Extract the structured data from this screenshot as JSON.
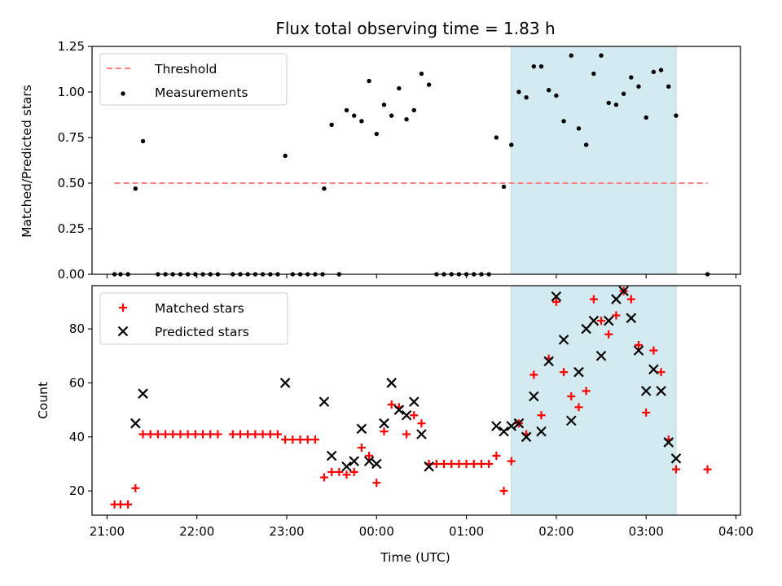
{
  "figure": {
    "title": "Flux total observing time = 1.83 h"
  },
  "chart_data": [
    {
      "type": "scatter",
      "ylabel": "Matched/Predicted stars",
      "ylim": [
        0,
        1.25
      ],
      "yticks": [
        "0.00",
        "0.25",
        "0.50",
        "0.75",
        "1.00",
        "1.25"
      ],
      "xlim": [
        "20:50",
        "04:03"
      ],
      "grid": false,
      "legend": "top-left",
      "highlight_span": {
        "from": "01:30",
        "to": "03:20",
        "color": "#d3eaf0"
      },
      "series": [
        {
          "name": "Threshold",
          "style": "dashed-line",
          "color": "#ff7f7f",
          "x": [
            "21:05",
            "03:41"
          ],
          "y": [
            0.5,
            0.5
          ]
        },
        {
          "name": "Measurements",
          "style": "dot",
          "color": "#000000",
          "points": [
            [
              "21:05",
              0
            ],
            [
              "21:09",
              0
            ],
            [
              "21:14",
              0
            ],
            [
              "21:19",
              0.47
            ],
            [
              "21:24",
              0.73
            ],
            [
              "21:34",
              0
            ],
            [
              "21:39",
              0
            ],
            [
              "21:44",
              0
            ],
            [
              "21:49",
              0
            ],
            [
              "21:54",
              0
            ],
            [
              "21:59",
              0
            ],
            [
              "22:04",
              0
            ],
            [
              "22:09",
              0
            ],
            [
              "22:14",
              0
            ],
            [
              "22:24",
              0
            ],
            [
              "22:29",
              0
            ],
            [
              "22:34",
              0
            ],
            [
              "22:39",
              0
            ],
            [
              "22:44",
              0
            ],
            [
              "22:49",
              0
            ],
            [
              "22:54",
              0
            ],
            [
              "22:59",
              0.65
            ],
            [
              "23:04",
              0
            ],
            [
              "23:09",
              0
            ],
            [
              "23:14",
              0
            ],
            [
              "23:19",
              0
            ],
            [
              "23:24",
              0
            ],
            [
              "23:25",
              0.47
            ],
            [
              "23:30",
              0.82
            ],
            [
              "23:35",
              0
            ],
            [
              "23:40",
              0.9
            ],
            [
              "23:45",
              0.87
            ],
            [
              "23:50",
              0.84
            ],
            [
              "23:55",
              1.06
            ],
            [
              "00:00",
              0.77
            ],
            [
              "00:05",
              0.93
            ],
            [
              "00:10",
              0.87
            ],
            [
              "00:15",
              1.02
            ],
            [
              "00:20",
              0.85
            ],
            [
              "00:25",
              0.9
            ],
            [
              "00:30",
              1.1
            ],
            [
              "00:35",
              1.04
            ],
            [
              "00:40",
              0
            ],
            [
              "00:45",
              0
            ],
            [
              "00:50",
              0
            ],
            [
              "00:55",
              0
            ],
            [
              "01:00",
              0
            ],
            [
              "01:05",
              0
            ],
            [
              "01:10",
              0
            ],
            [
              "01:15",
              0
            ],
            [
              "01:20",
              0.75
            ],
            [
              "01:25",
              0.48
            ],
            [
              "01:30",
              0.71
            ],
            [
              "01:35",
              1.0
            ],
            [
              "01:40",
              0.97
            ],
            [
              "01:45",
              1.14
            ],
            [
              "01:50",
              1.14
            ],
            [
              "01:55",
              1.01
            ],
            [
              "02:00",
              0.98
            ],
            [
              "02:05",
              0.84
            ],
            [
              "02:10",
              1.2
            ],
            [
              "02:15",
              0.8
            ],
            [
              "02:20",
              0.71
            ],
            [
              "02:25",
              1.1
            ],
            [
              "02:30",
              1.2
            ],
            [
              "02:35",
              0.94
            ],
            [
              "02:40",
              0.93
            ],
            [
              "02:45",
              0.99
            ],
            [
              "02:50",
              1.08
            ],
            [
              "02:55",
              1.03
            ],
            [
              "03:00",
              0.86
            ],
            [
              "03:05",
              1.11
            ],
            [
              "03:10",
              1.12
            ],
            [
              "03:15",
              1.03
            ],
            [
              "03:20",
              0.87
            ],
            [
              "03:41",
              0
            ]
          ]
        }
      ]
    },
    {
      "type": "scatter",
      "xlabel": "Time (UTC)",
      "ylabel": "Count",
      "ylim": [
        11,
        96
      ],
      "yticks": [
        "20",
        "40",
        "60",
        "80"
      ],
      "xlim": [
        "20:50",
        "04:03"
      ],
      "xticks": [
        "21:00",
        "22:00",
        "23:00",
        "00:00",
        "01:00",
        "02:00",
        "03:00",
        "04:00"
      ],
      "grid": false,
      "legend": "top-left",
      "highlight_span": {
        "from": "01:30",
        "to": "03:20",
        "color": "#d3eaf0"
      },
      "series": [
        {
          "name": "Matched stars",
          "marker": "plus",
          "color": "#ff0000",
          "points": [
            [
              "21:05",
              15
            ],
            [
              "21:09",
              15
            ],
            [
              "21:14",
              15
            ],
            [
              "21:19",
              21
            ],
            [
              "21:24",
              41
            ],
            [
              "21:29",
              41
            ],
            [
              "21:34",
              41
            ],
            [
              "21:39",
              41
            ],
            [
              "21:44",
              41
            ],
            [
              "21:49",
              41
            ],
            [
              "21:54",
              41
            ],
            [
              "21:59",
              41
            ],
            [
              "22:04",
              41
            ],
            [
              "22:09",
              41
            ],
            [
              "22:14",
              41
            ],
            [
              "22:24",
              41
            ],
            [
              "22:29",
              41
            ],
            [
              "22:34",
              41
            ],
            [
              "22:39",
              41
            ],
            [
              "22:44",
              41
            ],
            [
              "22:49",
              41
            ],
            [
              "22:54",
              41
            ],
            [
              "22:59",
              39
            ],
            [
              "23:04",
              39
            ],
            [
              "23:09",
              39
            ],
            [
              "23:14",
              39
            ],
            [
              "23:19",
              39
            ],
            [
              "23:25",
              25
            ],
            [
              "23:30",
              27
            ],
            [
              "23:35",
              27
            ],
            [
              "23:40",
              26
            ],
            [
              "23:45",
              27
            ],
            [
              "23:50",
              36
            ],
            [
              "23:55",
              33
            ],
            [
              "00:00",
              23
            ],
            [
              "00:05",
              42
            ],
            [
              "00:10",
              52
            ],
            [
              "00:15",
              51
            ],
            [
              "00:20",
              41
            ],
            [
              "00:25",
              48
            ],
            [
              "00:30",
              45
            ],
            [
              "00:35",
              30
            ],
            [
              "00:40",
              30
            ],
            [
              "00:45",
              30
            ],
            [
              "00:50",
              30
            ],
            [
              "00:55",
              30
            ],
            [
              "01:00",
              30
            ],
            [
              "01:05",
              30
            ],
            [
              "01:10",
              30
            ],
            [
              "01:15",
              30
            ],
            [
              "01:20",
              33
            ],
            [
              "01:25",
              20
            ],
            [
              "01:30",
              31
            ],
            [
              "01:35",
              45
            ],
            [
              "01:40",
              41
            ],
            [
              "01:45",
              63
            ],
            [
              "01:50",
              48
            ],
            [
              "01:55",
              69
            ],
            [
              "02:00",
              90
            ],
            [
              "02:05",
              64
            ],
            [
              "02:10",
              55
            ],
            [
              "02:15",
              51
            ],
            [
              "02:20",
              57
            ],
            [
              "02:25",
              91
            ],
            [
              "02:30",
              83
            ],
            [
              "02:35",
              78
            ],
            [
              "02:40",
              85
            ],
            [
              "02:45",
              94
            ],
            [
              "02:50",
              91
            ],
            [
              "02:55",
              74
            ],
            [
              "03:00",
              49
            ],
            [
              "03:05",
              72
            ],
            [
              "03:10",
              64
            ],
            [
              "03:15",
              39
            ],
            [
              "03:20",
              28
            ],
            [
              "03:41",
              28
            ]
          ]
        },
        {
          "name": "Predicted stars",
          "marker": "x",
          "color": "#000000",
          "points": [
            [
              "21:19",
              45
            ],
            [
              "21:24",
              56
            ],
            [
              "22:59",
              60
            ],
            [
              "23:25",
              53
            ],
            [
              "23:30",
              33
            ],
            [
              "23:40",
              29
            ],
            [
              "23:45",
              31
            ],
            [
              "23:50",
              43
            ],
            [
              "23:55",
              31
            ],
            [
              "00:00",
              30
            ],
            [
              "00:05",
              45
            ],
            [
              "00:10",
              60
            ],
            [
              "00:15",
              50
            ],
            [
              "00:20",
              48
            ],
            [
              "00:25",
              53
            ],
            [
              "00:30",
              41
            ],
            [
              "00:35",
              29
            ],
            [
              "01:20",
              44
            ],
            [
              "01:25",
              42
            ],
            [
              "01:30",
              44
            ],
            [
              "01:35",
              45
            ],
            [
              "01:40",
              40
            ],
            [
              "01:45",
              55
            ],
            [
              "01:50",
              42
            ],
            [
              "01:55",
              68
            ],
            [
              "02:00",
              92
            ],
            [
              "02:05",
              76
            ],
            [
              "02:10",
              46
            ],
            [
              "02:15",
              64
            ],
            [
              "02:20",
              80
            ],
            [
              "02:25",
              83
            ],
            [
              "02:30",
              70
            ],
            [
              "02:35",
              83
            ],
            [
              "02:40",
              91
            ],
            [
              "02:45",
              94
            ],
            [
              "02:50",
              84
            ],
            [
              "02:55",
              72
            ],
            [
              "03:00",
              57
            ],
            [
              "03:05",
              65
            ],
            [
              "03:10",
              57
            ],
            [
              "03:15",
              38
            ],
            [
              "03:20",
              32
            ]
          ]
        }
      ]
    }
  ]
}
